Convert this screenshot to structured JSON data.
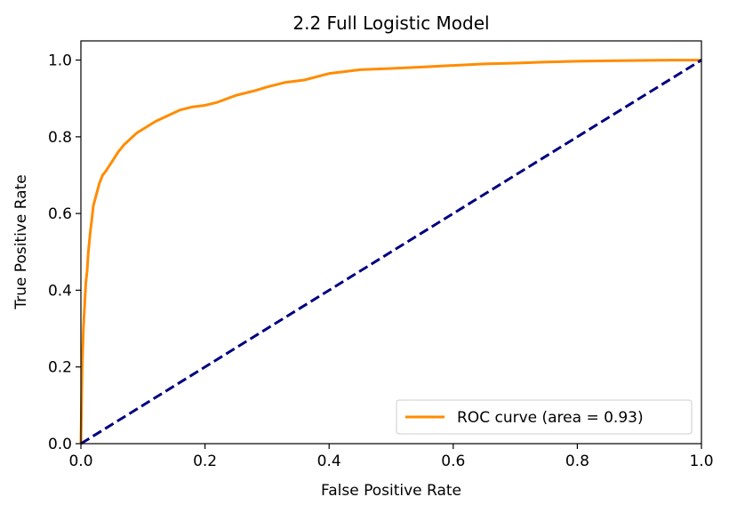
{
  "chart_data": {
    "type": "line",
    "title": "2.2 Full Logistic Model",
    "xlabel": "False Positive Rate",
    "ylabel": "True Positive Rate",
    "xlim": [
      0.0,
      1.0
    ],
    "ylim": [
      0.0,
      1.05
    ],
    "xticks": [
      0.0,
      0.2,
      0.4,
      0.6,
      0.8,
      1.0
    ],
    "yticks": [
      0.0,
      0.2,
      0.4,
      0.6,
      0.8,
      1.0
    ],
    "xtick_labels": [
      "0.0",
      "0.2",
      "0.4",
      "0.6",
      "0.8",
      "1.0"
    ],
    "ytick_labels": [
      "0.0",
      "0.2",
      "0.4",
      "0.6",
      "0.8",
      "1.0"
    ],
    "grid": false,
    "legend_position": "lower-right",
    "series": [
      {
        "name": "ROC curve (area = 0.93)",
        "color": "#ff8c00",
        "style": "solid",
        "x": [
          0.0,
          0.002,
          0.004,
          0.006,
          0.008,
          0.01,
          0.012,
          0.015,
          0.018,
          0.02,
          0.025,
          0.03,
          0.035,
          0.04,
          0.05,
          0.06,
          0.07,
          0.08,
          0.09,
          0.1,
          0.12,
          0.14,
          0.16,
          0.18,
          0.2,
          0.22,
          0.25,
          0.28,
          0.3,
          0.33,
          0.36,
          0.4,
          0.45,
          0.5,
          0.55,
          0.6,
          0.65,
          0.7,
          0.75,
          0.8,
          0.85,
          0.9,
          0.95,
          1.0
        ],
        "y": [
          0.0,
          0.2,
          0.3,
          0.36,
          0.42,
          0.45,
          0.5,
          0.55,
          0.59,
          0.62,
          0.65,
          0.68,
          0.7,
          0.71,
          0.735,
          0.76,
          0.78,
          0.795,
          0.81,
          0.82,
          0.84,
          0.855,
          0.87,
          0.878,
          0.882,
          0.89,
          0.908,
          0.92,
          0.93,
          0.942,
          0.948,
          0.965,
          0.975,
          0.978,
          0.982,
          0.986,
          0.99,
          0.992,
          0.995,
          0.997,
          0.998,
          0.999,
          1.0,
          1.0
        ]
      },
      {
        "name": "",
        "color": "#000080",
        "style": "dashed",
        "x": [
          0.0,
          1.0
        ],
        "y": [
          0.0,
          1.0
        ]
      }
    ]
  }
}
